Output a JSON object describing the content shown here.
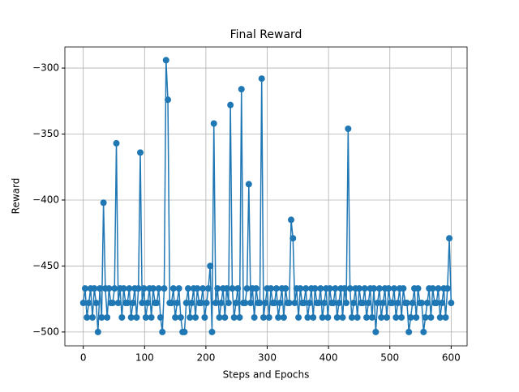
{
  "chart_data": {
    "type": "line",
    "title": "Final Reward",
    "xlabel": "Steps and Epochs",
    "ylabel": "Reward",
    "x": [
      0,
      3,
      6,
      9,
      12,
      15,
      18,
      21,
      24,
      27,
      30,
      33,
      36,
      39,
      42,
      45,
      48,
      51,
      54,
      57,
      60,
      63,
      66,
      69,
      72,
      75,
      78,
      81,
      84,
      87,
      90,
      93,
      96,
      99,
      102,
      105,
      108,
      111,
      114,
      117,
      120,
      123,
      126,
      129,
      132,
      135,
      138,
      141,
      144,
      147,
      150,
      153,
      156,
      159,
      162,
      165,
      168,
      171,
      174,
      177,
      180,
      183,
      186,
      189,
      192,
      195,
      198,
      201,
      204,
      207,
      210,
      213,
      216,
      219,
      222,
      225,
      228,
      231,
      234,
      237,
      240,
      243,
      246,
      249,
      252,
      255,
      258,
      261,
      264,
      267,
      270,
      273,
      276,
      279,
      282,
      285,
      288,
      291,
      294,
      297,
      300,
      303,
      306,
      309,
      312,
      315,
      318,
      321,
      324,
      327,
      330,
      333,
      336,
      339,
      342,
      345,
      348,
      351,
      354,
      357,
      360,
      363,
      366,
      369,
      372,
      375,
      378,
      381,
      384,
      387,
      390,
      393,
      396,
      399,
      402,
      405,
      408,
      411,
      414,
      417,
      420,
      423,
      426,
      429,
      432,
      435,
      438,
      441,
      444,
      447,
      450,
      453,
      456,
      459,
      462,
      465,
      468,
      471,
      474,
      477,
      480,
      483,
      486,
      489,
      492,
      495,
      498,
      501,
      504,
      507,
      510,
      513,
      516,
      519,
      522,
      525,
      528,
      531,
      534,
      537,
      540,
      543,
      546,
      549,
      552,
      555,
      558,
      561,
      564,
      567,
      570,
      573,
      576,
      579,
      582,
      585,
      588,
      591,
      594,
      597,
      600
    ],
    "series": [
      {
        "name": "Reward",
        "color": "#1f77b4",
        "values": [
          -478,
          -467,
          -489,
          -478,
          -467,
          -489,
          -467,
          -478,
          -500,
          -467,
          -489,
          -402,
          -467,
          -489,
          -467,
          -478,
          -478,
          -467,
          -357,
          -478,
          -467,
          -489,
          -467,
          -478,
          -478,
          -467,
          -489,
          -478,
          -467,
          -489,
          -467,
          -364,
          -478,
          -467,
          -489,
          -478,
          -467,
          -489,
          -467,
          -478,
          -478,
          -467,
          -489,
          -500,
          -467,
          -294,
          -324,
          -478,
          -478,
          -467,
          -489,
          -478,
          -467,
          -489,
          -500,
          -500,
          -478,
          -467,
          -489,
          -478,
          -467,
          -489,
          -467,
          -478,
          -478,
          -467,
          -489,
          -478,
          -467,
          -450,
          -500,
          -342,
          -478,
          -467,
          -489,
          -478,
          -467,
          -489,
          -467,
          -478,
          -328,
          -467,
          -489,
          -478,
          -467,
          -489,
          -316,
          -478,
          -478,
          -467,
          -388,
          -478,
          -467,
          -489,
          -467,
          -478,
          -478,
          -308,
          -489,
          -478,
          -467,
          -489,
          -467,
          -478,
          -478,
          -467,
          -489,
          -478,
          -467,
          -489,
          -467,
          -478,
          -478,
          -415,
          -429,
          -478,
          -467,
          -489,
          -467,
          -478,
          -478,
          -467,
          -489,
          -478,
          -467,
          -489,
          -467,
          -478,
          -478,
          -467,
          -489,
          -478,
          -467,
          -489,
          -467,
          -478,
          -478,
          -467,
          -489,
          -478,
          -467,
          -489,
          -467,
          -478,
          -346,
          -467,
          -489,
          -478,
          -467,
          -489,
          -467,
          -478,
          -478,
          -467,
          -489,
          -478,
          -467,
          -489,
          -467,
          -500,
          -478,
          -467,
          -489,
          -478,
          -467,
          -489,
          -467,
          -478,
          -478,
          -467,
          -489,
          -478,
          -467,
          -489,
          -467,
          -478,
          -478,
          -500,
          -489,
          -478,
          -467,
          -489,
          -467,
          -478,
          -478,
          -500,
          -489,
          -478,
          -467,
          -489,
          -467,
          -478,
          -478,
          -467,
          -489,
          -478,
          -467,
          -489,
          -467,
          -429,
          -478
        ]
      }
    ],
    "xlim": [
      -30,
      626
    ],
    "ylim": [
      -510.5,
      -284
    ],
    "xticks": [
      0,
      100,
      200,
      300,
      400,
      500,
      600
    ],
    "yticks": [
      {
        "value": -500,
        "label": "−500"
      },
      {
        "value": -450,
        "label": "−450"
      },
      {
        "value": -400,
        "label": "−400"
      },
      {
        "value": -350,
        "label": "−350"
      },
      {
        "value": -300,
        "label": "−300"
      }
    ],
    "grid": true
  }
}
